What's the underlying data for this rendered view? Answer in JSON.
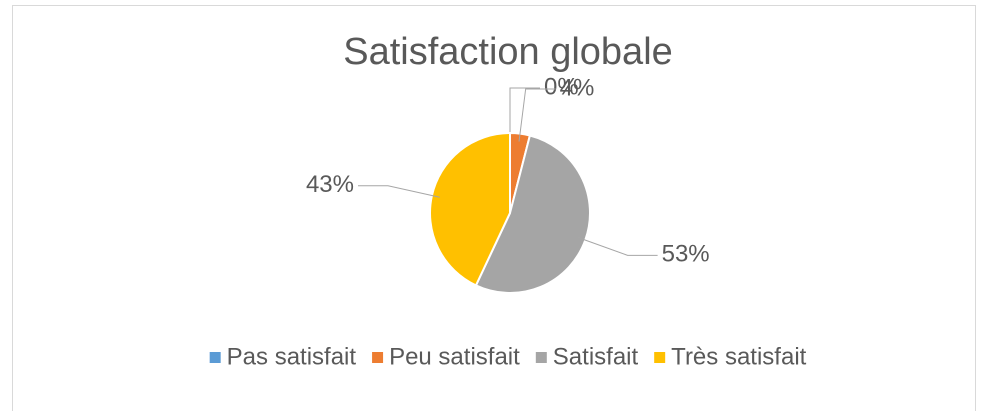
{
  "chart_data": {
    "type": "pie",
    "title": "Satisfaction globale",
    "categories": [
      "Pas satisfait",
      "Peu satisfait",
      "Satisfait",
      "Très satisfait"
    ],
    "values": [
      0,
      4,
      53,
      43
    ],
    "value_labels": [
      "0%",
      "4%",
      "53%",
      "43%"
    ],
    "colors": [
      "#5b9bd5",
      "#ed7d31",
      "#a5a5a5",
      "#ffc000"
    ],
    "legend": "bottom"
  }
}
